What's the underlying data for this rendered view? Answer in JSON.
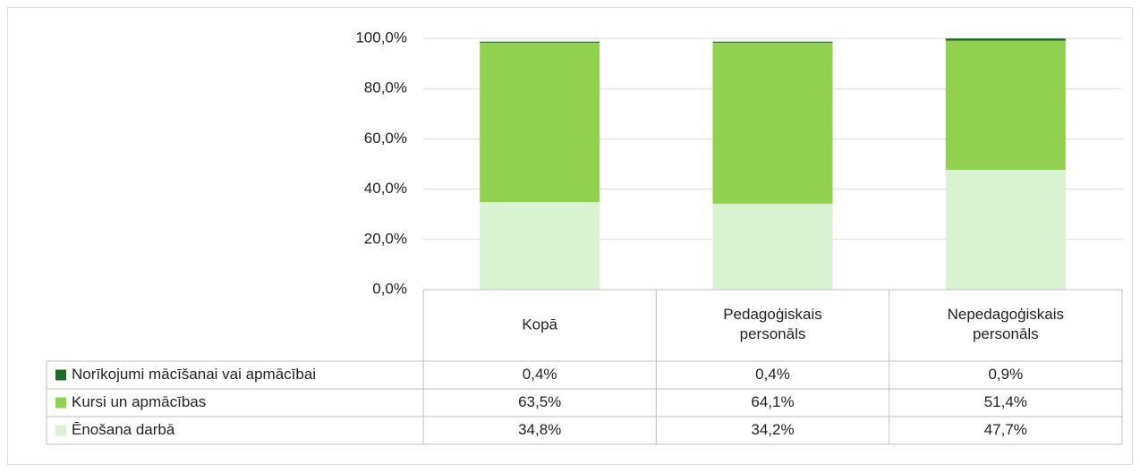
{
  "chart_data": {
    "type": "bar",
    "stacked": true,
    "categories": [
      "Kopā",
      "Pedagoģiskais personāls",
      "Nepedagoģiskais personāls"
    ],
    "series": [
      {
        "name": "Norīkojumi mācīšanai vai apmācībai",
        "color": "#1e6b2a",
        "values": [
          0.4,
          0.4,
          0.9
        ],
        "value_labels": [
          "0,4%",
          "0,4%",
          "0,9%"
        ]
      },
      {
        "name": "Kursi un apmācības",
        "color": "#92d050",
        "values": [
          63.5,
          64.1,
          51.4
        ],
        "value_labels": [
          "63,5%",
          "64,1%",
          "51,4%"
        ]
      },
      {
        "name": "Ēnošana darbā",
        "color": "#d9f2d0",
        "values": [
          34.8,
          34.2,
          47.7
        ],
        "value_labels": [
          "34,8%",
          "34,2%",
          "47,7%"
        ]
      }
    ],
    "ylim": [
      0,
      100
    ],
    "yticks": [
      {
        "value": 0,
        "label": "0,0%"
      },
      {
        "value": 20,
        "label": "20,0%"
      },
      {
        "value": 40,
        "label": "40,0%"
      },
      {
        "value": 60,
        "label": "60,0%"
      },
      {
        "value": 80,
        "label": "80,0%"
      },
      {
        "value": 100,
        "label": "100,0%"
      }
    ],
    "grid": true,
    "data_table": true
  }
}
